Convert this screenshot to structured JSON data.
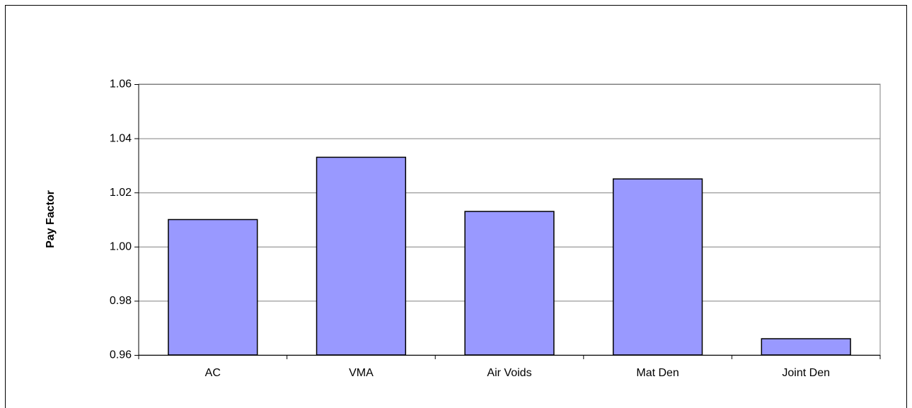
{
  "chart_data": {
    "type": "bar",
    "y_label": "Pay Factor",
    "categories": [
      "AC",
      "VMA",
      "Air Voids",
      "Mat Den",
      "Joint Den"
    ],
    "values": [
      1.01,
      1.033,
      1.013,
      1.025,
      0.966
    ],
    "color": "#9999ff",
    "ylim": [
      0.96,
      1.06
    ],
    "yticks": [
      0.96,
      0.98,
      {
        "value": 1,
        "label": "1.00"
      },
      1.02,
      1.04,
      1.06
    ],
    "grid": true
  }
}
